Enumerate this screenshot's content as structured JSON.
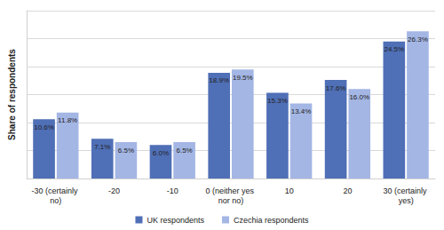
{
  "chart_data": {
    "type": "bar",
    "y_label": "Share of respondents",
    "categories": [
      "-30 (certainly no)",
      "-20",
      "-10",
      "0 (neither yes nor no)",
      "10",
      "20",
      "30 (certainly yes)"
    ],
    "series": [
      {
        "name": "UK respondents",
        "color": "#4f6fb6",
        "values": [
          10.6,
          7.1,
          6.0,
          18.9,
          15.3,
          17.6,
          24.5
        ],
        "value_labels": [
          "10.6%",
          "7.1%",
          "6.0%",
          "18.9%",
          "15.3%",
          "17.6%",
          "24.5%"
        ]
      },
      {
        "name": "Czechia respondents",
        "color": "#a4b6e4",
        "values": [
          11.8,
          6.5,
          6.5,
          19.5,
          13.4,
          16.0,
          26.3
        ],
        "value_labels": [
          "11.8%",
          "6.5%",
          "6.5%",
          "19.5%",
          "13.4%",
          "16.0%",
          "26.3%"
        ]
      }
    ],
    "ylim": [
      0,
      30
    ],
    "yticks": [
      0,
      5,
      10,
      15,
      20,
      25,
      30
    ],
    "grid": true,
    "legend": "bottom",
    "data_labels": true,
    "tick_labels": "x"
  }
}
